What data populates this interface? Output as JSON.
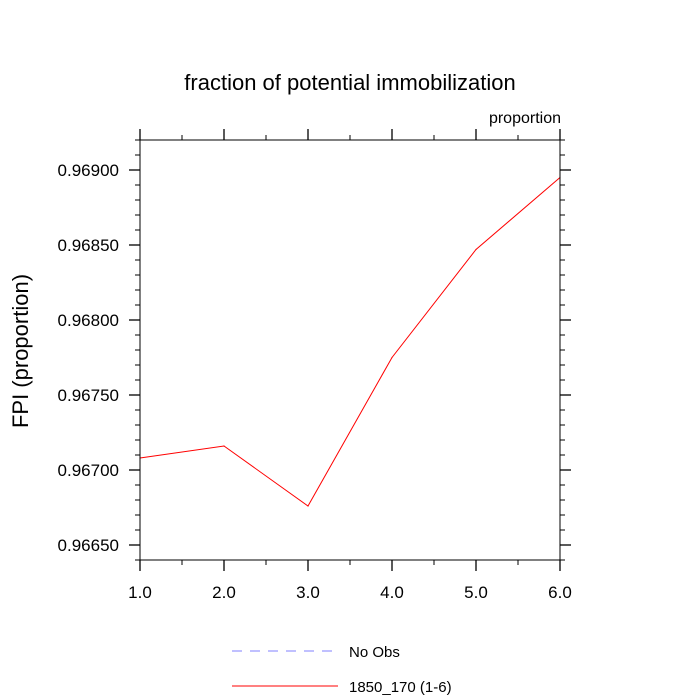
{
  "chart_data": {
    "type": "line",
    "title": "fraction of potential immobilization",
    "units_label": "proportion",
    "xlabel": "",
    "ylabel": "FPI  (proportion)",
    "xlim": [
      1.0,
      6.0
    ],
    "ylim": [
      0.9664,
      0.9692
    ],
    "x_ticks": [
      1.0,
      2.0,
      3.0,
      4.0,
      5.0,
      6.0
    ],
    "x_tick_labels": [
      "1.0",
      "2.0",
      "3.0",
      "4.0",
      "5.0",
      "6.0"
    ],
    "y_ticks": [
      0.9665,
      0.967,
      0.9675,
      0.968,
      0.9685,
      0.969
    ],
    "y_tick_labels": [
      "0.96650",
      "0.96700",
      "0.96750",
      "0.96800",
      "0.96850",
      "0.96900"
    ],
    "x_minor_step": 0.5,
    "y_minor_step": 0.0001,
    "grid": false,
    "series": [
      {
        "name": "1850_170 (1-6)",
        "color": "#ff0000",
        "dashed": false,
        "x": [
          1.0,
          2.0,
          3.0,
          4.0,
          5.0,
          6.0
        ],
        "values": [
          0.96708,
          0.96716,
          0.96676,
          0.96775,
          0.96847,
          0.96895
        ]
      }
    ],
    "legend": {
      "placement": "bottom-center",
      "entries": [
        {
          "label": "No Obs",
          "color": "#8080ff",
          "dashed": true
        },
        {
          "label": "1850_170 (1-6)",
          "color": "#ff0000",
          "dashed": false
        }
      ]
    }
  }
}
